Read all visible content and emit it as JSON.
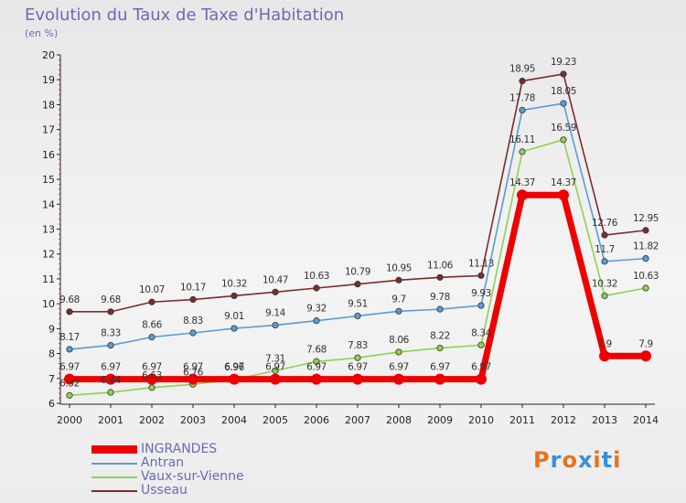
{
  "title": "Evolution du Taux de Taxe d'Habitation",
  "unit_label": "(en %)",
  "brand": {
    "text": "Proxiti",
    "colors": [
      "#e8731a",
      "#3b8ed8",
      "#e8731a",
      "#3b8ed8",
      "#e8731a",
      "#3b8ed8",
      "#e8731a"
    ]
  },
  "chart_data": {
    "type": "line",
    "title": "Evolution du Taux de Taxe d'Habitation",
    "ylabel": "(en %)",
    "xlabel": "",
    "x": [
      "2000",
      "2001",
      "2002",
      "2003",
      "2004",
      "2005",
      "2006",
      "2007",
      "2008",
      "2009",
      "2010",
      "2011",
      "2012",
      "2013",
      "2014"
    ],
    "ylim": [
      6,
      20
    ],
    "yticks": [
      "6",
      "7",
      "8",
      "9",
      "10",
      "11",
      "12",
      "13",
      "14",
      "15",
      "16",
      "17",
      "18",
      "19",
      "20"
    ],
    "grid": false,
    "legend_position": "bottom-left",
    "series": [
      {
        "name": "INGRANDES",
        "color": "#ee0000",
        "values": [
          6.97,
          6.97,
          6.97,
          6.97,
          6.97,
          6.97,
          6.97,
          6.97,
          6.97,
          6.97,
          6.97,
          14.37,
          14.37,
          7.9,
          7.9
        ],
        "labels": [
          "6.97",
          "6.97",
          "6.97",
          "6.97",
          "6.97",
          "6.97",
          "6.97",
          "6.97",
          "6.97",
          "6.97",
          "6.97",
          "14.37",
          "14.37",
          "7.9",
          "7.9"
        ]
      },
      {
        "name": "Antran",
        "color": "#5b9bd5",
        "values": [
          8.17,
          8.33,
          8.66,
          8.83,
          9.01,
          9.14,
          9.32,
          9.51,
          9.7,
          9.78,
          9.93,
          17.78,
          18.05,
          11.7,
          11.82
        ],
        "labels": [
          "8.17",
          "8.33",
          "8.66",
          "8.83",
          "9.01",
          "9.14",
          "9.32",
          "9.51",
          "9.7",
          "9.78",
          "9.93",
          "17.78",
          "18.05",
          "11.7",
          "11.82"
        ]
      },
      {
        "name": "Vaux-sur-Vienne",
        "color": "#8fd14f",
        "values": [
          6.32,
          6.44,
          6.63,
          6.76,
          6.96,
          7.31,
          7.68,
          7.83,
          8.06,
          8.22,
          8.34,
          16.11,
          16.59,
          10.32,
          10.63
        ],
        "labels": [
          "6.32",
          "6.44",
          "6.63",
          "6.76",
          "6.96",
          "7.31",
          "7.68",
          "7.83",
          "8.06",
          "8.22",
          "8.34",
          "16.11",
          "16.59",
          "10.32",
          "10.63"
        ]
      },
      {
        "name": "Usseau",
        "color": "#7a2c2c",
        "values": [
          9.68,
          9.68,
          10.07,
          10.17,
          10.32,
          10.47,
          10.63,
          10.79,
          10.95,
          11.06,
          11.13,
          18.95,
          19.23,
          12.76,
          12.95
        ],
        "labels": [
          "9.68",
          "9.68",
          "10.07",
          "10.17",
          "10.32",
          "10.47",
          "10.63",
          "10.79",
          "10.95",
          "11.06",
          "11.13",
          "18.95",
          "19.23",
          "12.76",
          "12.95"
        ]
      }
    ]
  }
}
